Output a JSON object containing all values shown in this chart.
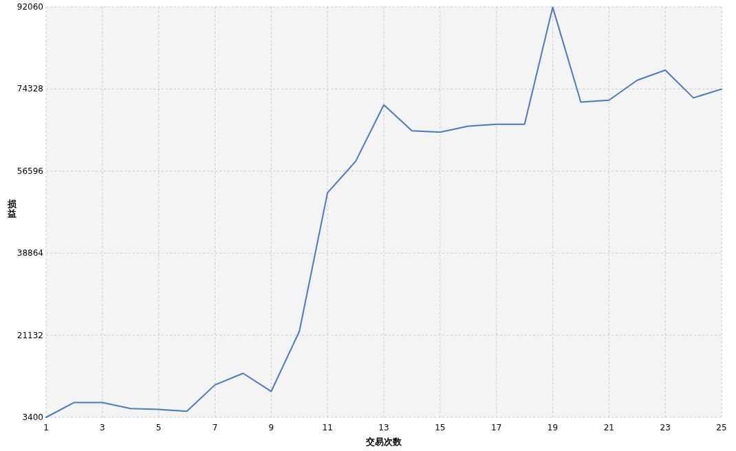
{
  "chart_data": {
    "type": "line",
    "xlabel": "交易次数",
    "ylabel": "损益",
    "x": [
      1,
      2,
      3,
      4,
      5,
      6,
      7,
      8,
      9,
      10,
      11,
      12,
      13,
      14,
      15,
      16,
      17,
      18,
      19,
      20,
      21,
      22,
      23,
      24,
      25
    ],
    "series": [
      {
        "color": "#4a78c8",
        "values": [
          3400,
          6600,
          6600,
          5300,
          5100,
          4700,
          10400,
          12900,
          9000,
          22000,
          51900,
          58700,
          70900,
          65300,
          65000,
          66300,
          66700,
          66700,
          92000,
          71500,
          71900,
          76200,
          78400,
          72400,
          74300
        ]
      }
    ],
    "xlim": [
      1,
      25
    ],
    "xticks": [
      1,
      3,
      5,
      7,
      9,
      11,
      13,
      15,
      17,
      19,
      21,
      23,
      25
    ],
    "ylim": [
      3400,
      92060
    ],
    "yticks": [
      3400,
      21132,
      38864,
      56596,
      74328,
      92060
    ],
    "grid": true
  }
}
